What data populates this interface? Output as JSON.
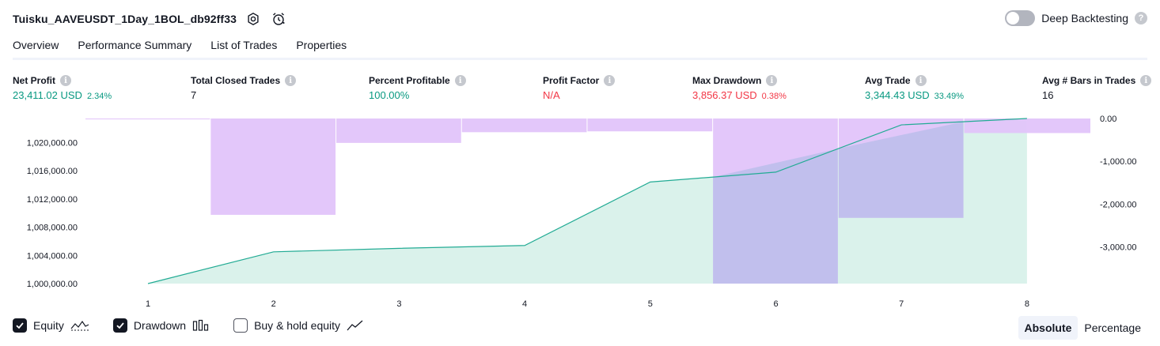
{
  "header": {
    "title": "Tuisku_AAVEUSDT_1Day_1BOL_db92ff33",
    "settings_icon": "gear-icon",
    "alert_icon": "alarm-clock-icon",
    "deep_backtesting_label": "Deep Backtesting",
    "deep_backtesting_on": false
  },
  "tabs": [
    {
      "label": "Overview",
      "active": true
    },
    {
      "label": "Performance Summary",
      "active": false
    },
    {
      "label": "List of Trades",
      "active": false
    },
    {
      "label": "Properties",
      "active": false
    }
  ],
  "stats": {
    "net_profit": {
      "label": "Net Profit",
      "value": "23,411.02 USD",
      "pct": "2.34%"
    },
    "total_closed_trades": {
      "label": "Total Closed Trades",
      "value": "7"
    },
    "percent_profitable": {
      "label": "Percent Profitable",
      "value": "100.00%"
    },
    "profit_factor": {
      "label": "Profit Factor",
      "value": "N/A"
    },
    "max_drawdown": {
      "label": "Max Drawdown",
      "value": "3,856.37 USD",
      "pct": "0.38%"
    },
    "avg_trade": {
      "label": "Avg Trade",
      "value": "3,344.43 USD",
      "pct": "33.49%"
    },
    "avg_bars": {
      "label": "Avg # Bars in Trades",
      "value": "16"
    }
  },
  "colors": {
    "positive": "#089981",
    "negative": "#f23645",
    "equity_line": "#22ab94",
    "equity_fill": "#d4f0e8",
    "drawdown_fill": "#e1c4fa",
    "overlap_fill": "#b6bce8"
  },
  "chart_data": {
    "type": "area",
    "x": [
      1,
      2,
      3,
      4,
      5,
      6,
      7,
      8
    ],
    "x_ticks": [
      "1",
      "2",
      "3",
      "4",
      "5",
      "6",
      "7",
      "8"
    ],
    "left_axis": {
      "ticks": [
        "1,000,000.00",
        "1,004,000.00",
        "1,008,000.00",
        "1,012,000.00",
        "1,016,000.00",
        "1,020,000.00"
      ],
      "ylim": [
        1000000,
        1023400
      ]
    },
    "right_axis": {
      "ticks": [
        "0.00",
        "-1,000.00",
        "-2,000.00",
        "-3,000.00"
      ],
      "ylim": [
        -3856,
        0
      ]
    },
    "series": [
      {
        "name": "Equity",
        "axis": "left",
        "values": [
          1000000,
          1004500,
          1005000,
          1005400,
          1014400,
          1015800,
          1022500,
          1023400
        ]
      },
      {
        "name": "Drawdown",
        "axis": "right",
        "type": "bar",
        "values": [
          -20,
          -2250,
          -570,
          -320,
          -300,
          -3856,
          -2320,
          -340
        ]
      }
    ],
    "grid": false
  },
  "legend": [
    {
      "label": "Equity",
      "checked": true,
      "icon": "equity-line-icon"
    },
    {
      "label": "Drawdown",
      "checked": true,
      "icon": "drawdown-bars-icon"
    },
    {
      "label": "Buy & hold equity",
      "checked": false,
      "icon": "buy-hold-line-icon"
    }
  ],
  "mode": {
    "absolute_label": "Absolute",
    "percentage_label": "Percentage",
    "selected": "Absolute"
  }
}
